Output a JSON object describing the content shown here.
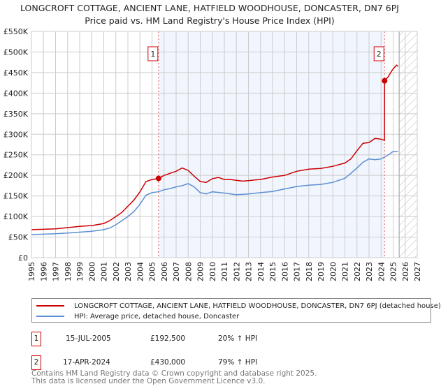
{
  "chart_data": {
    "type": "line",
    "title": "LONGCROFT COTTAGE, ANCIENT LANE, HATFIELD WOODHOUSE, DONCASTER, DN7 6PJ",
    "subtitle": "Price paid vs. HM Land Registry's House Price Index (HPI)",
    "xlim": [
      1995,
      2027
    ],
    "ylim": [
      0,
      550000
    ],
    "x_ticks": [
      "1995",
      "1996",
      "1997",
      "1998",
      "1999",
      "2000",
      "2001",
      "2002",
      "2003",
      "2004",
      "2005",
      "2006",
      "2007",
      "2008",
      "2009",
      "2010",
      "2011",
      "2012",
      "2013",
      "2014",
      "2015",
      "2016",
      "2017",
      "2018",
      "2019",
      "2020",
      "2021",
      "2022",
      "2023",
      "2024",
      "2025",
      "2026",
      "2027"
    ],
    "y_ticks": [
      {
        "v": 0,
        "label": "£0"
      },
      {
        "v": 50000,
        "label": "£50K"
      },
      {
        "v": 100000,
        "label": "£100K"
      },
      {
        "v": 150000,
        "label": "£150K"
      },
      {
        "v": 200000,
        "label": "£200K"
      },
      {
        "v": 250000,
        "label": "£250K"
      },
      {
        "v": 300000,
        "label": "£300K"
      },
      {
        "v": 350000,
        "label": "£350K"
      },
      {
        "v": 400000,
        "label": "£400K"
      },
      {
        "v": 450000,
        "label": "£450K"
      },
      {
        "v": 500000,
        "label": "£500K"
      },
      {
        "v": 550000,
        "label": "£550K"
      }
    ],
    "grid": true,
    "series": [
      {
        "name": "LONGCROFT COTTAGE, ANCIENT LANE, HATFIELD WOODHOUSE, DONCASTER, DN7 6PJ (detached house)",
        "color": "#cc0000",
        "x": [
          1995,
          1996,
          1997,
          1998,
          1999,
          2000,
          2001,
          2001.5,
          2002,
          2002.5,
          2003,
          2003.5,
          2004,
          2004.5,
          2005,
          2005.54,
          2006,
          2006.5,
          2007,
          2007.5,
          2008,
          2008.5,
          2009,
          2009.5,
          2010,
          2010.5,
          2011,
          2011.5,
          2012,
          2012.5,
          2013,
          2013.5,
          2014,
          2015,
          2016,
          2017,
          2018,
          2019,
          2020,
          2021,
          2021.5,
          2022,
          2022.5,
          2023,
          2023.5,
          2024,
          2024.28,
          2024.29,
          2024.6,
          2024.9,
          2025.1,
          2025.3,
          2025.4
        ],
        "y": [
          68000,
          69000,
          70000,
          73000,
          76000,
          78000,
          83000,
          90000,
          100000,
          110000,
          125000,
          140000,
          160000,
          185000,
          190000,
          192500,
          200000,
          205000,
          210000,
          218000,
          212000,
          198000,
          185000,
          183000,
          192000,
          195000,
          190000,
          190000,
          188000,
          186000,
          187000,
          189000,
          190000,
          196000,
          200000,
          210000,
          215000,
          217000,
          222000,
          230000,
          240000,
          260000,
          278000,
          280000,
          290000,
          288000,
          285000,
          430000,
          440000,
          455000,
          462000,
          468000,
          465000
        ]
      },
      {
        "name": "HPI: Average price, detached house, Doncaster",
        "color": "#5b8fd4",
        "x": [
          1995,
          1996,
          1997,
          1998,
          1999,
          2000,
          2001,
          2001.5,
          2002,
          2002.5,
          2003,
          2003.5,
          2004,
          2004.5,
          2005,
          2005.5,
          2006,
          2006.5,
          2007,
          2007.5,
          2008,
          2008.5,
          2009,
          2009.5,
          2010,
          2011,
          2012,
          2013,
          2014,
          2015,
          2016,
          2017,
          2018,
          2019,
          2020,
          2021,
          2021.5,
          2022,
          2022.5,
          2023,
          2023.5,
          2024,
          2024.5,
          2025,
          2025.4
        ],
        "y": [
          56000,
          57000,
          58000,
          60000,
          62000,
          64000,
          68000,
          72000,
          80000,
          90000,
          100000,
          112000,
          130000,
          152000,
          158000,
          160000,
          165000,
          168000,
          172000,
          175000,
          180000,
          172000,
          158000,
          155000,
          160000,
          157000,
          153000,
          155000,
          158000,
          161000,
          167000,
          173000,
          176000,
          178000,
          183000,
          193000,
          205000,
          218000,
          232000,
          240000,
          238000,
          240000,
          248000,
          258000,
          258000
        ]
      }
    ],
    "sales": [
      {
        "label": "1",
        "x": 2005.54,
        "y": 192500
      },
      {
        "label": "2",
        "x": 2024.29,
        "y": 430000
      }
    ],
    "forecast_start": 2025.5
  },
  "legend": {
    "red": "LONGCROFT COTTAGE, ANCIENT LANE, HATFIELD WOODHOUSE, DONCASTER, DN7 6PJ (detached house)",
    "blue": "HPI: Average price, detached house, Doncaster"
  },
  "sales_table": [
    {
      "num": "1",
      "date": "15-JUL-2005",
      "price": "£192,500",
      "hpi": "20% ↑ HPI"
    },
    {
      "num": "2",
      "date": "17-APR-2024",
      "price": "£430,000",
      "hpi": "79% ↑ HPI"
    }
  ],
  "footer": {
    "line1": "Contains HM Land Registry data © Crown copyright and database right 2025.",
    "line2": "This data is licensed under the Open Government Licence v3.0."
  }
}
